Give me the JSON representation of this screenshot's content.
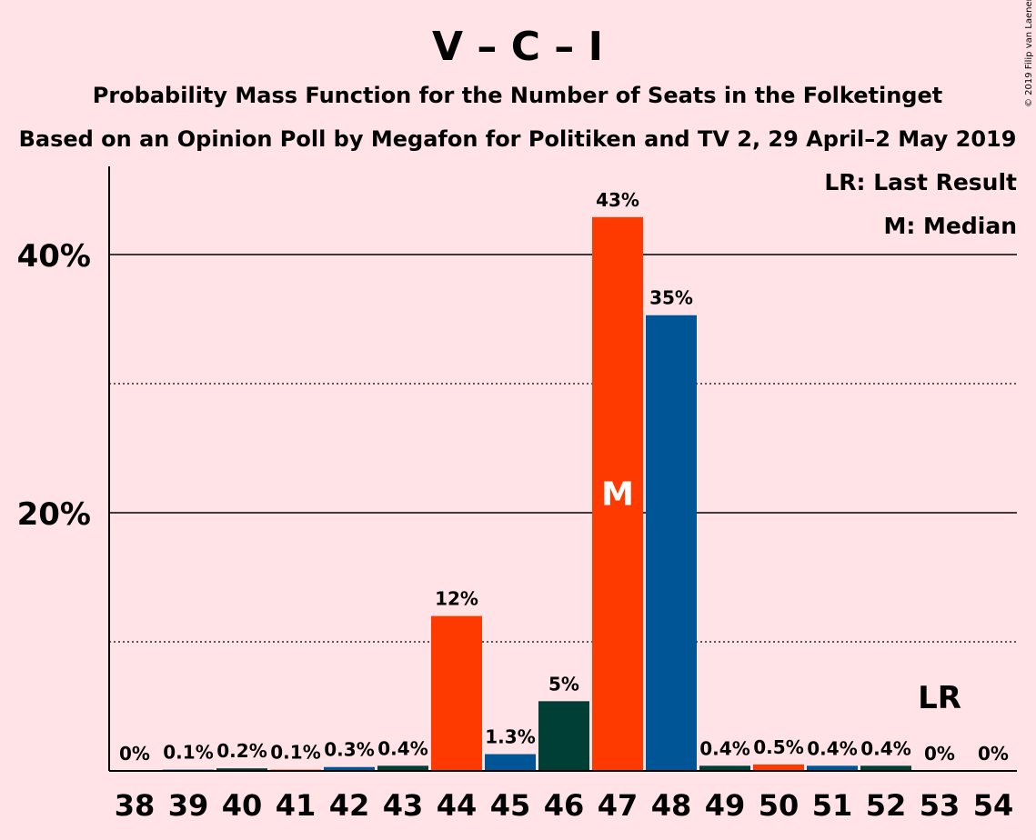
{
  "title": "V – C – I",
  "subtitle1": "Probability Mass Function for the Number of Seats in the Folketinget",
  "subtitle2": "Based on an Opinion Poll by Megafon for Politiken and TV 2, 29 April–2 May 2019",
  "legend": {
    "last_result": "LR: Last Result",
    "median": "M: Median"
  },
  "copyright": "© 2019 Filip van Laenen",
  "colors": {
    "background": "#ffe3e6",
    "V": "#003f35",
    "C": "#005596",
    "I": "#ff3a00"
  },
  "chart_data": {
    "type": "bar",
    "x": [
      38,
      39,
      40,
      41,
      42,
      43,
      44,
      45,
      46,
      47,
      48,
      49,
      50,
      51,
      52,
      53,
      54
    ],
    "values": [
      0.0,
      0.1,
      0.2,
      0.1,
      0.3,
      0.4,
      12.0,
      1.3,
      5.4,
      42.9,
      35.3,
      0.4,
      0.5,
      0.4,
      0.4,
      0.0,
      0.0
    ],
    "labels": [
      "0%",
      "0.1%",
      "0.2%",
      "0.1%",
      "0.3%",
      "0.4%",
      "12%",
      "1.3%",
      "5%",
      "43%",
      "35%",
      "0.4%",
      "0.5%",
      "0.4%",
      "0.4%",
      "0%",
      "0%"
    ],
    "bar_colors": [
      "#003f35",
      "#005596",
      "#003f35",
      "#ff3a00",
      "#005596",
      "#003f35",
      "#ff3a00",
      "#005596",
      "#003f35",
      "#ff3a00",
      "#005596",
      "#003f35",
      "#ff3a00",
      "#005596",
      "#003f35",
      "#ff3a00",
      "#005596"
    ],
    "yticks": [
      20,
      40
    ],
    "ytick_labels": [
      "20%",
      "40%"
    ],
    "ylim": [
      0,
      47
    ],
    "grid": {
      "solid": [
        20,
        40
      ],
      "dotted": [
        10,
        30
      ]
    },
    "median_seat": 47,
    "median_label": "M",
    "last_result_seat": 53,
    "last_result_label": "LR",
    "legend_position": "top-right"
  }
}
